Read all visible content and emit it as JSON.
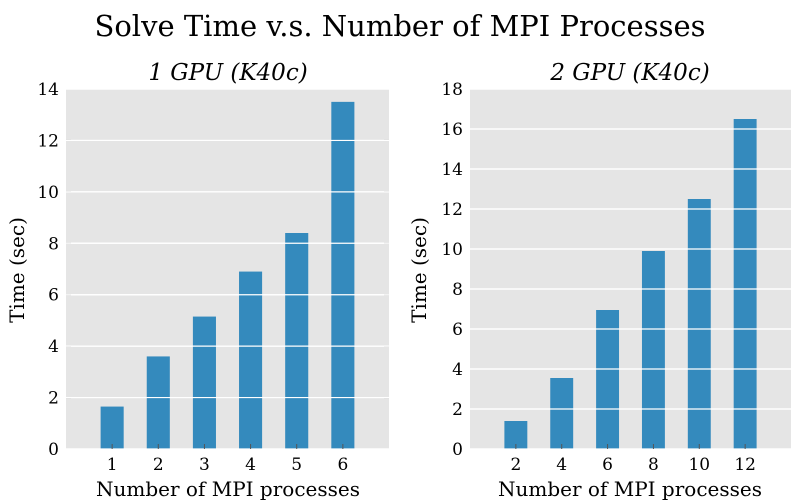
{
  "figure": {
    "title": "Solve Time v.s. Number of MPI Processes"
  },
  "style": {
    "bar_color": "#348abd",
    "plot_background": "#e5e5e5",
    "grid_color": "#ffffff"
  },
  "chart_data": [
    {
      "type": "bar",
      "title": "1 GPU (K40c)",
      "xlabel": "Number of MPI processes",
      "ylabel": "Time (sec)",
      "categories": [
        "1",
        "2",
        "3",
        "4",
        "5",
        "6"
      ],
      "values": [
        1.65,
        3.6,
        5.15,
        6.9,
        8.4,
        13.5
      ],
      "ylim": [
        0,
        14
      ],
      "yticks": [
        "0",
        "2",
        "4",
        "6",
        "8",
        "10",
        "12",
        "14"
      ],
      "grid": true
    },
    {
      "type": "bar",
      "title": "2 GPU (K40c)",
      "xlabel": "Number of MPI processes",
      "ylabel": "Time (sec)",
      "categories": [
        "2",
        "4",
        "6",
        "8",
        "10",
        "12"
      ],
      "values": [
        1.4,
        3.55,
        6.95,
        9.9,
        12.5,
        16.5
      ],
      "ylim": [
        0,
        18
      ],
      "yticks": [
        "0",
        "2",
        "4",
        "6",
        "8",
        "10",
        "12",
        "14",
        "16",
        "18"
      ],
      "grid": true
    }
  ]
}
